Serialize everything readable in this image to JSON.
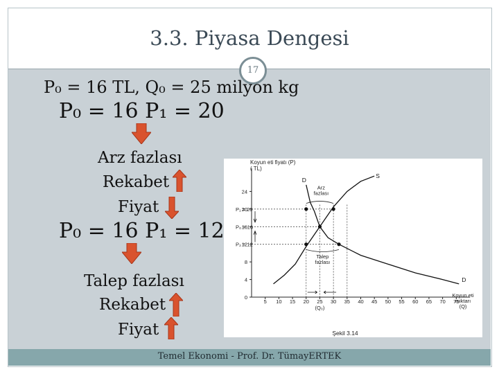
{
  "slide": {
    "title": "3.3. Piyasa Dengesi",
    "number": "17",
    "footer": "Temel Ekonomi - Prof. Dr. TümayERTEK"
  },
  "left": {
    "line1": "P₀ = 16 TL, Q₀ = 25 milyon kg",
    "line2": "P₀ = 16   P₁ = 20",
    "block1": [
      "Arz fazlası",
      "Rekabet",
      "Fiyat"
    ],
    "line3": "P₀ = 16   P₁ = 12",
    "block2": [
      "Talep fazlası",
      "Rekabet",
      "Fiyat"
    ]
  },
  "colors": {
    "arrow_fill": "#d9532e",
    "arrow_stroke": "#a7361a",
    "content_bg": "#c9d1d6",
    "footer_bg": "#86a7ab"
  },
  "chart_data": {
    "type": "line",
    "ylabel": "Koyun eti fiyatı (P)\n( TL)",
    "xlabel": "Koyun eti\nmiktarı\n(Q)",
    "caption": "Şekil 3.14",
    "x_ticks": [
      5,
      10,
      15,
      20,
      25,
      30,
      35,
      40,
      45,
      50,
      55,
      60,
      65,
      70,
      75
    ],
    "y_ticks": [
      0,
      4,
      8,
      12,
      16,
      20,
      24
    ],
    "xlim": [
      0,
      80
    ],
    "ylim": [
      0,
      28
    ],
    "y_special_labels": [
      "P₁ = 20",
      "P₀ = 16",
      "P₂ = 12"
    ],
    "x_special_label": "(Q₀)",
    "series": [
      {
        "name": "S",
        "x": [
          8,
          12,
          16,
          20,
          25,
          30,
          35,
          40,
          45
        ],
        "y": [
          3,
          5,
          7.5,
          11.5,
          16,
          20.5,
          24,
          26.3,
          27.5
        ]
      },
      {
        "name": "D",
        "x": [
          20,
          21.5,
          23,
          25,
          28,
          32,
          40,
          50,
          60,
          70,
          76
        ],
        "y": [
          25.5,
          21.5,
          19.5,
          16,
          13.5,
          12,
          9.5,
          7.5,
          5.5,
          4,
          3
        ]
      }
    ],
    "annotations": [
      "Arz\nfazlası",
      "Talep\nfazlası"
    ],
    "points": [
      {
        "x": 20,
        "y": 20
      },
      {
        "x": 30,
        "y": 20
      },
      {
        "x": 25,
        "y": 16
      },
      {
        "x": 20,
        "y": 12
      },
      {
        "x": 32,
        "y": 12
      }
    ]
  }
}
